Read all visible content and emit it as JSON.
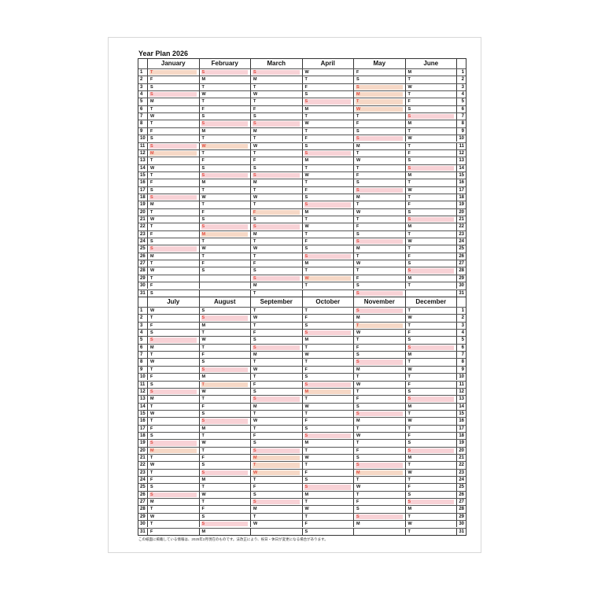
{
  "title": "Year Plan 2026",
  "year": 2026,
  "weekday_letters": [
    "S",
    "M",
    "T",
    "W",
    "T",
    "F",
    "S"
  ],
  "months": [
    {
      "name": "January",
      "holidays": [
        1,
        12
      ]
    },
    {
      "name": "February",
      "holidays": [
        11,
        23
      ]
    },
    {
      "name": "March",
      "holidays": [
        20
      ]
    },
    {
      "name": "April",
      "holidays": [
        29
      ]
    },
    {
      "name": "May",
      "holidays": [
        3,
        4,
        5,
        6
      ]
    },
    {
      "name": "June",
      "holidays": []
    },
    {
      "name": "July",
      "holidays": [
        20
      ]
    },
    {
      "name": "August",
      "holidays": [
        11
      ]
    },
    {
      "name": "September",
      "holidays": [
        21,
        22,
        23
      ]
    },
    {
      "name": "October",
      "holidays": [
        12
      ]
    },
    {
      "name": "November",
      "holidays": [
        3,
        23
      ]
    },
    {
      "name": "December",
      "holidays": []
    }
  ],
  "colors": {
    "sunday_fill": "#f8d2d6",
    "holiday_fill": "#f6d8c6",
    "holiday_text": "#e04a3f"
  },
  "footnote": "この紙面に掲載している情報は、2025年2月現在のものです。法改正により、祝日・休日が変更になる場合があります。"
}
